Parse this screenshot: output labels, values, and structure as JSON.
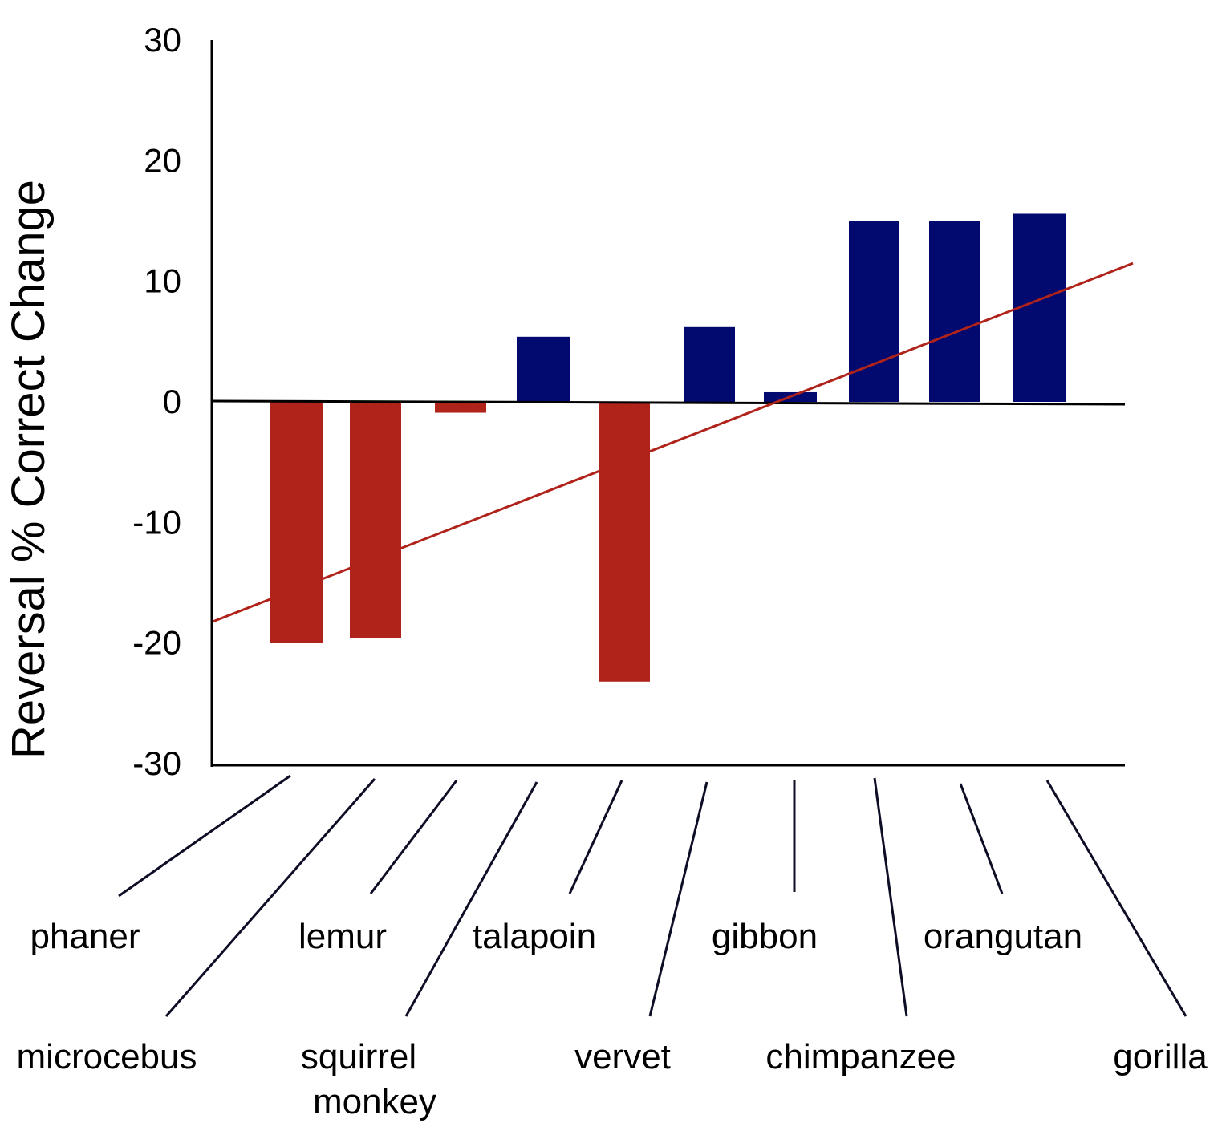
{
  "chart_data": {
    "type": "bar",
    "ylabel": "Reversal % Correct Change",
    "xlabel": "",
    "ylim": [
      -30,
      30
    ],
    "yticks": [
      "30",
      "20",
      "10",
      "0",
      "-10",
      "-20",
      "-30"
    ],
    "categories": [
      "phaner",
      "microcebus",
      "lemur",
      "squirrel monkey",
      "talapoin",
      "vervet",
      "gibbon",
      "chimpanzee",
      "orangutan",
      "gorilla"
    ],
    "category_label_lines": [
      [
        "phaner"
      ],
      [
        "microcebus"
      ],
      [
        "lemur"
      ],
      [
        "squirrel",
        "monkey"
      ],
      [
        "talapoin"
      ],
      [
        "vervet"
      ],
      [
        "gibbon"
      ],
      [
        "chimpanzee"
      ],
      [
        "orangutan"
      ],
      [
        "gorilla"
      ]
    ],
    "values": [
      -20,
      -19.6,
      -0.9,
      5.4,
      -23.2,
      6.2,
      0.8,
      15,
      15,
      15.6
    ],
    "trendline": {
      "x_start_value": -18.2,
      "x_end_value": 11.5
    },
    "colors": {
      "negative": "#b0231a",
      "positive": "#02096f",
      "trend": "#b0231a",
      "axis": "#000000",
      "leader": "#0d0d26"
    },
    "grid": false,
    "legend": "none"
  }
}
